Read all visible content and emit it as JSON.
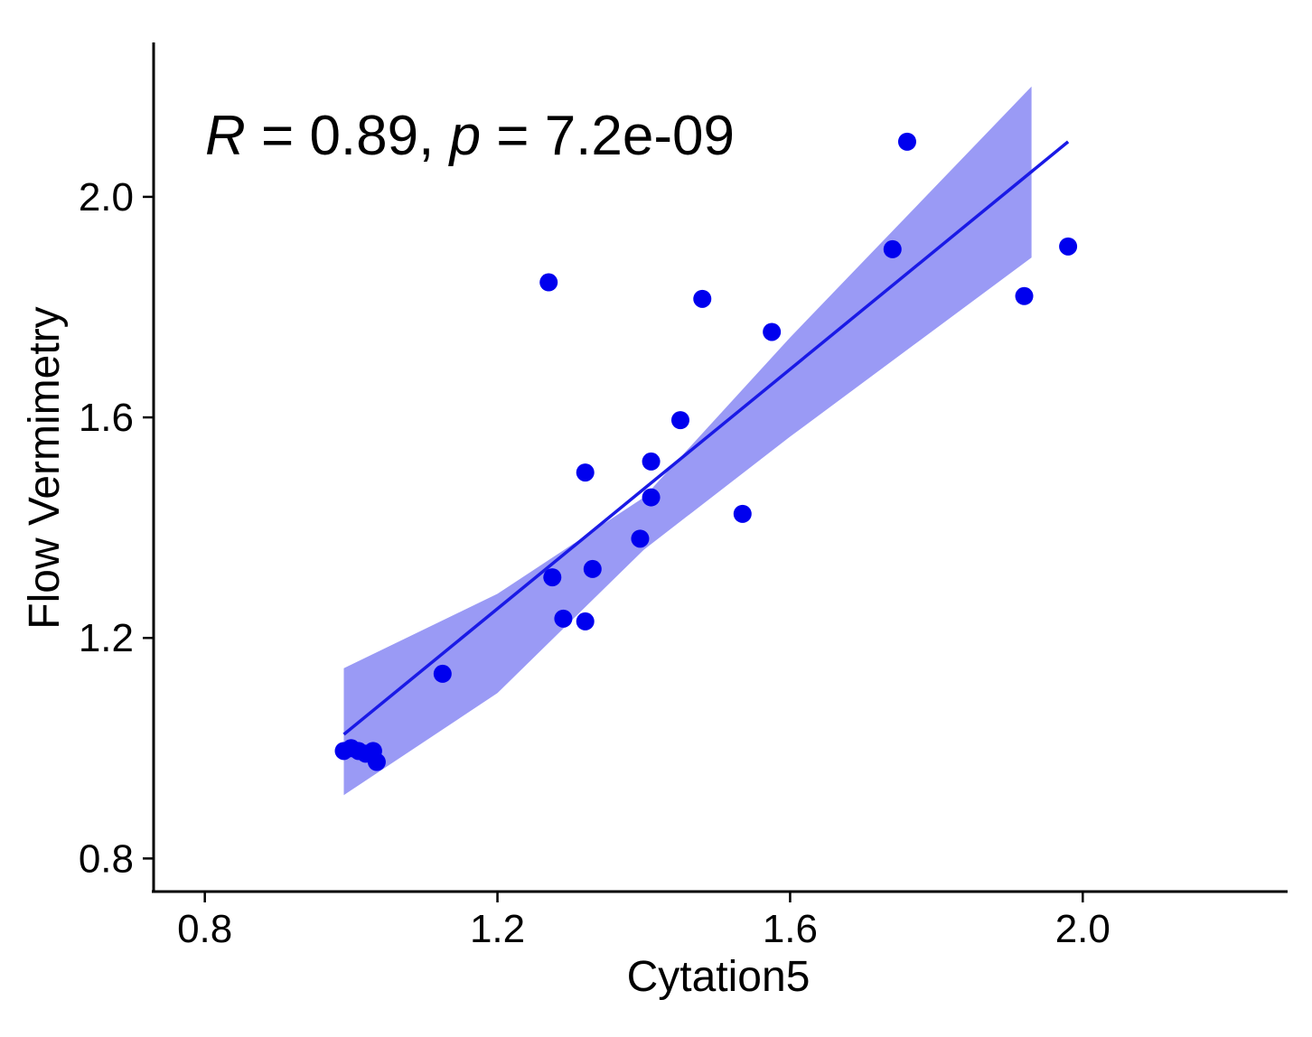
{
  "chart_data": {
    "type": "scatter",
    "xlabel": "Cytation5",
    "ylabel": "Flow Vermimetry",
    "xlim": [
      0.73,
      2.28
    ],
    "ylim": [
      0.74,
      2.28
    ],
    "x_ticks": [
      0.8,
      1.2,
      1.6,
      2.0
    ],
    "y_ticks": [
      0.8,
      1.2,
      1.6,
      2.0
    ],
    "x_tick_labels": [
      "0.8",
      "1.2",
      "1.6",
      "2.0"
    ],
    "y_tick_labels": [
      "0.8",
      "1.2",
      "1.6",
      "2.0"
    ],
    "annotation": {
      "r_symbol": "R",
      "r_value": " = 0.89, ",
      "p_symbol": "p",
      "p_value": " = 7.2e-09"
    },
    "grid": false,
    "point_color": "#0000ee",
    "line_color": "#1a1ae6",
    "band_color": "#9a9af5",
    "points": [
      {
        "x": 0.99,
        "y": 0.995
      },
      {
        "x": 1.0,
        "y": 1.0
      },
      {
        "x": 1.01,
        "y": 0.995
      },
      {
        "x": 1.02,
        "y": 0.99
      },
      {
        "x": 1.03,
        "y": 0.995
      },
      {
        "x": 1.035,
        "y": 0.975
      },
      {
        "x": 1.125,
        "y": 1.135
      },
      {
        "x": 1.27,
        "y": 1.845
      },
      {
        "x": 1.275,
        "y": 1.31
      },
      {
        "x": 1.29,
        "y": 1.235
      },
      {
        "x": 1.32,
        "y": 1.5
      },
      {
        "x": 1.32,
        "y": 1.23
      },
      {
        "x": 1.33,
        "y": 1.325
      },
      {
        "x": 1.395,
        "y": 1.38
      },
      {
        "x": 1.41,
        "y": 1.52
      },
      {
        "x": 1.41,
        "y": 1.455
      },
      {
        "x": 1.45,
        "y": 1.595
      },
      {
        "x": 1.48,
        "y": 1.815
      },
      {
        "x": 1.535,
        "y": 1.425
      },
      {
        "x": 1.575,
        "y": 1.755
      },
      {
        "x": 1.74,
        "y": 1.905
      },
      {
        "x": 1.76,
        "y": 2.1
      },
      {
        "x": 1.92,
        "y": 1.82
      },
      {
        "x": 1.98,
        "y": 1.91
      }
    ],
    "fit_line": [
      {
        "x": 0.99,
        "y": 1.025
      },
      {
        "x": 1.98,
        "y": 2.1
      }
    ],
    "confidence_band": {
      "x": [
        0.99,
        1.2,
        1.4,
        1.6,
        1.93
      ],
      "upper": [
        1.145,
        1.28,
        1.455,
        1.745,
        2.2
      ],
      "lower": [
        0.915,
        1.1,
        1.36,
        1.565,
        1.89
      ]
    }
  }
}
